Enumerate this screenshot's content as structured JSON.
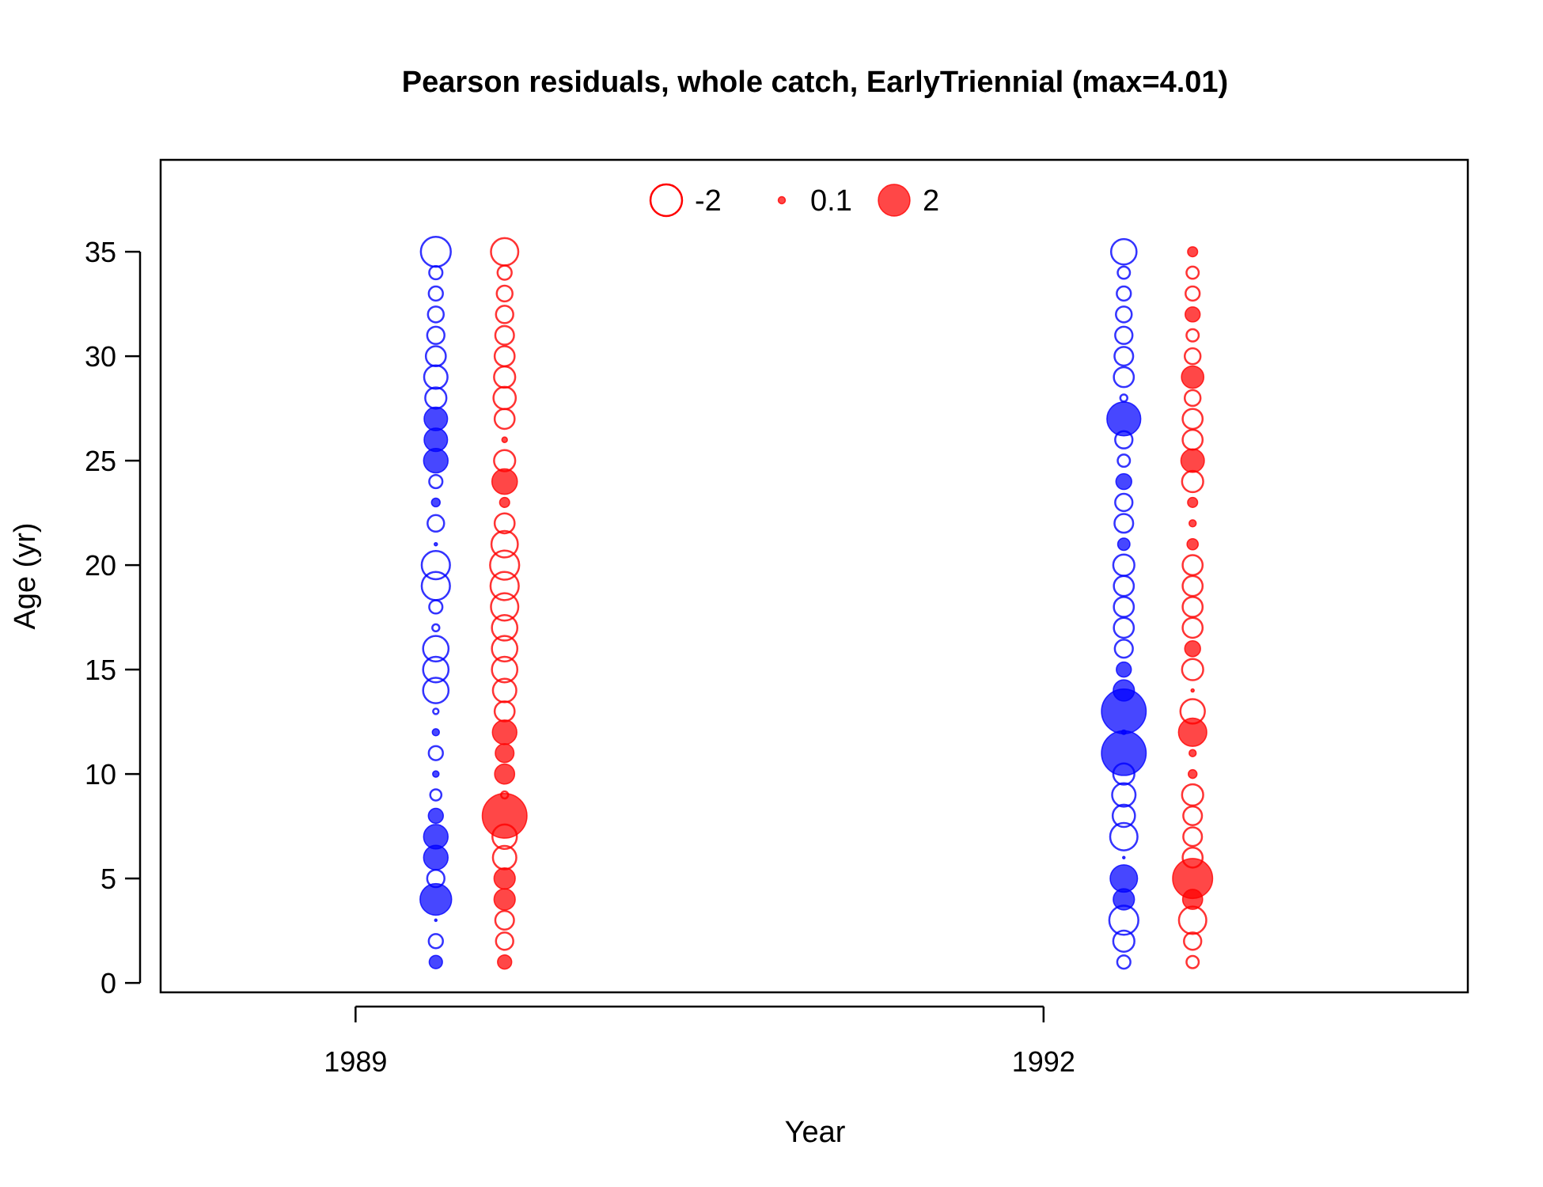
{
  "chart_data": {
    "type": "scatter",
    "title": "Pearson residuals, whole catch, EarlyTriennial (max=4.01)",
    "xlabel": "Year",
    "ylabel": "Age (yr)",
    "xlim": [
      1988.15,
      1993.85
    ],
    "ylim": [
      -0.45,
      39.4
    ],
    "x_ticks": [
      1989,
      1992
    ],
    "y_ticks": [
      0,
      5,
      10,
      15,
      20,
      25,
      30,
      35
    ],
    "grid": false,
    "legend": {
      "placement": "top-center",
      "entries": [
        {
          "label": "-2",
          "value": -2
        },
        {
          "label": "0.1",
          "value": 0.1
        },
        {
          "label": "2",
          "value": 2
        }
      ]
    },
    "encoding": {
      "size": "sqrt(abs(residual))",
      "filled": "residual > 0",
      "open": "residual < 0"
    },
    "colors": {
      "female": "#0000ff",
      "male": "#ff0000",
      "frame": "#000000"
    },
    "series": [
      {
        "x": 1989.35,
        "color": "#0000ff",
        "residuals": [
          0,
          0.35,
          -0.4,
          0.01,
          2.0,
          -0.6,
          1.2,
          1.2,
          0.45,
          -0.25,
          0.08,
          -0.4,
          0.1,
          -0.06,
          -1.3,
          -1.3,
          -1.3,
          -0.1,
          -0.35,
          -1.6,
          -1.6,
          0.02,
          -0.55,
          0.15,
          -0.35,
          1.2,
          1.1,
          1.1,
          -0.9,
          -1.1,
          -0.8,
          -0.6,
          -0.5,
          -0.4,
          -0.35,
          -1.8
        ]
      },
      {
        "x": 1989.65,
        "color": "#ff0000",
        "residuals": [
          0,
          0.4,
          -0.6,
          -0.7,
          0.9,
          0.9,
          -1.1,
          -1.2,
          4.01,
          -0.1,
          0.8,
          0.7,
          1.2,
          -0.8,
          -1.1,
          -1.3,
          -1.3,
          -1.3,
          -1.5,
          -1.6,
          -1.7,
          -1.4,
          -0.8,
          0.2,
          1.3,
          -0.9,
          0.06,
          -0.8,
          -1.0,
          -0.9,
          -0.8,
          -0.7,
          -0.6,
          -0.5,
          -0.4,
          -1.5
        ]
      },
      {
        "x": 1992.35,
        "color": "#0000ff",
        "residuals": [
          0,
          -0.35,
          -0.9,
          -1.7,
          0.9,
          1.5,
          0.01,
          -1.5,
          -1.0,
          -1.1,
          -0.9,
          4.0,
          0.04,
          4.0,
          0.9,
          0.45,
          -0.65,
          -0.8,
          -0.8,
          -0.8,
          -0.9,
          0.3,
          -0.7,
          -0.6,
          0.5,
          -0.3,
          -0.6,
          2.3,
          -0.1,
          -0.8,
          -0.7,
          -0.6,
          -0.5,
          -0.4,
          -0.3,
          -1.3
        ]
      },
      {
        "x": 1992.65,
        "color": "#ff0000",
        "residuals": [
          0,
          -0.3,
          -0.6,
          -1.5,
          0.8,
          3.2,
          -0.8,
          -0.7,
          -0.7,
          -0.9,
          0.15,
          0.1,
          1.6,
          -1.2,
          0.02,
          -0.9,
          0.5,
          -0.8,
          -0.8,
          -0.8,
          -0.8,
          0.25,
          0.1,
          0.2,
          -0.9,
          1.1,
          -0.8,
          -0.8,
          -0.5,
          1.0,
          -0.5,
          -0.3,
          0.45,
          -0.4,
          -0.3,
          0.2
        ]
      }
    ]
  }
}
